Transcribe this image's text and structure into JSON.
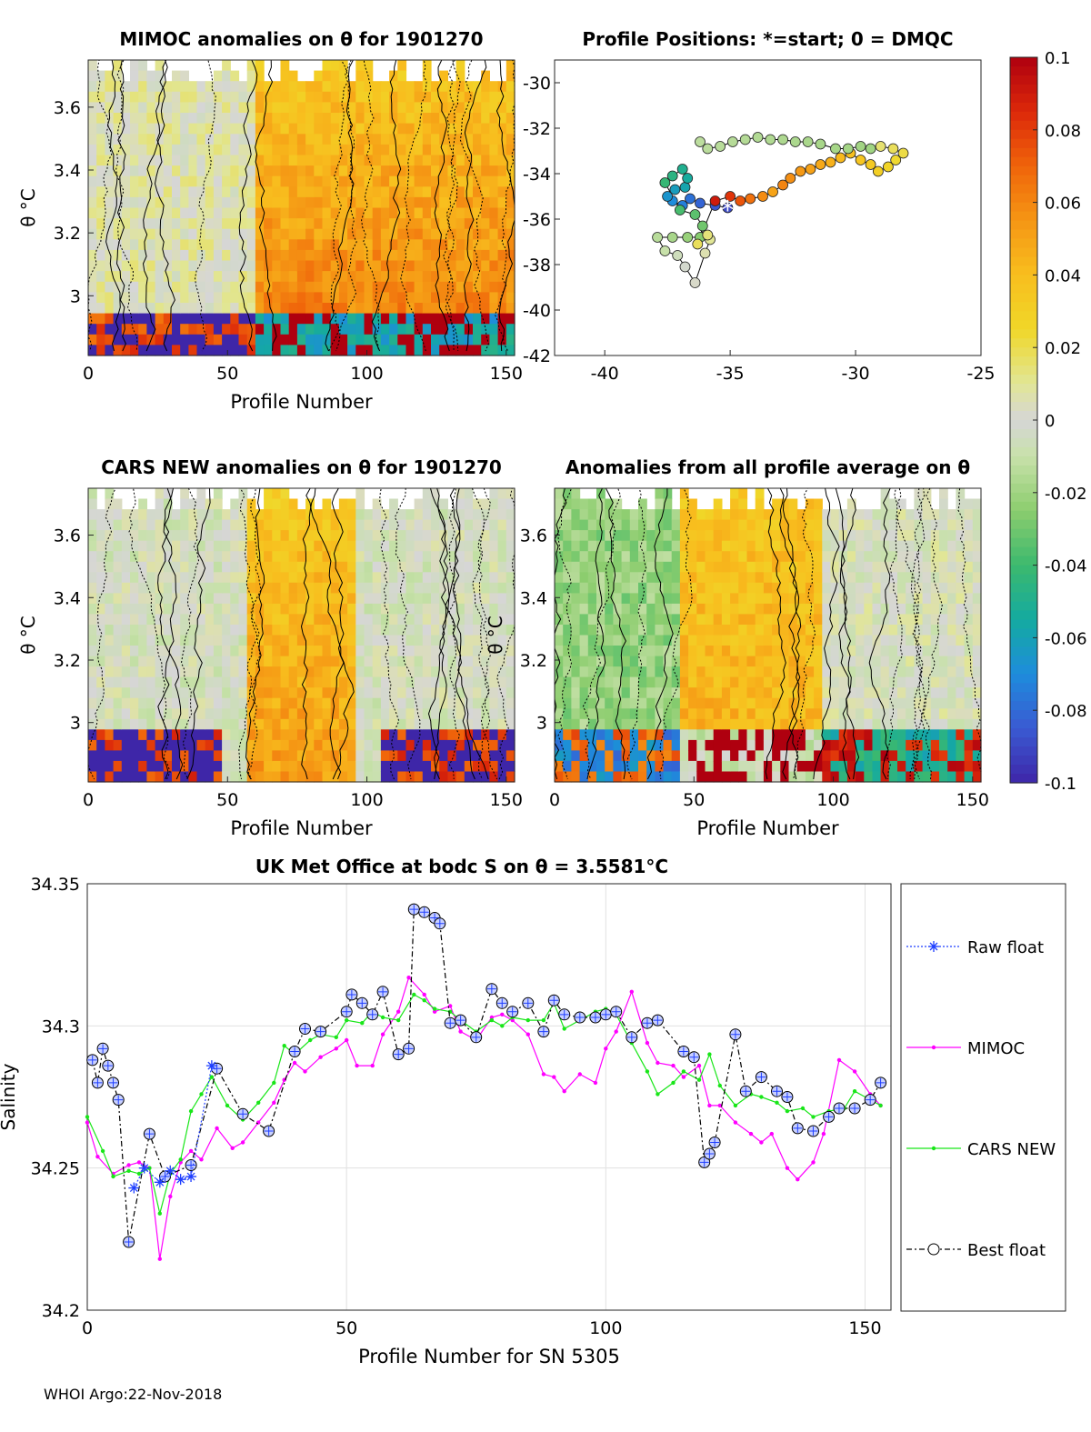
{
  "footer": "WHOI Argo:22-Nov-2018",
  "colors": {
    "raw": "#1f3fff",
    "mimoc": "#ff00ff",
    "cars": "#19e619",
    "best": "#000000",
    "grid": "#e1e1e1"
  },
  "chart_data": [
    {
      "id": "mimoc",
      "type": "heatmap",
      "title": "MIMOC anomalies on θ  for 1901270",
      "xlabel": "Profile Number",
      "ylabel": "θ °C",
      "xlim": [
        0,
        153
      ],
      "ylim": [
        2.81,
        3.75
      ],
      "xticks": [
        "0",
        "50",
        "100",
        "150"
      ],
      "yticks": [
        "3",
        "3.2",
        "3.4",
        "3.6"
      ],
      "clim": [
        -0.1,
        0.1
      ]
    },
    {
      "id": "positions",
      "type": "scatter",
      "title": "Profile Positions: *=start; 0 = DMQC",
      "xlim": [
        -42,
        -25
      ],
      "ylim": [
        -42,
        -29
      ],
      "xticks": [
        "-40",
        "-35",
        "-30",
        "-25"
      ],
      "yticks": [
        "-30",
        "-32",
        "-34",
        "-36",
        "-38",
        "-40",
        "-42"
      ]
    },
    {
      "id": "cars",
      "type": "heatmap",
      "title": "CARS NEW anomalies on θ for 1901270",
      "xlabel": "Profile Number",
      "ylabel": "θ °C",
      "xlim": [
        0,
        153
      ],
      "ylim": [
        2.81,
        3.75
      ],
      "xticks": [
        "0",
        "50",
        "100",
        "150"
      ],
      "yticks": [
        "3",
        "3.2",
        "3.4",
        "3.6"
      ]
    },
    {
      "id": "avg",
      "type": "heatmap",
      "title": "Anomalies from all profile average on θ",
      "xlabel": "Profile Number",
      "ylabel": "θ °C",
      "xlim": [
        0,
        153
      ],
      "ylim": [
        2.81,
        3.75
      ],
      "xticks": [
        "0",
        "50",
        "100",
        "150"
      ],
      "yticks": [
        "3",
        "3.2",
        "3.4",
        "3.6"
      ]
    },
    {
      "id": "colorbar",
      "type": "heatmap",
      "range": [
        -0.1,
        0.1
      ],
      "ticks": [
        "0.1",
        "0.08",
        "0.06",
        "0.04",
        "0.02",
        "0",
        "-0.02",
        "-0.04",
        "-0.06",
        "-0.08",
        "-0.1"
      ]
    },
    {
      "id": "salinity",
      "type": "line",
      "title": "UK Met Office at bodc S on θ = 3.5581°C",
      "xlabel": "Profile Number for SN 5305",
      "ylabel": "Salinity",
      "xlim": [
        0,
        155
      ],
      "ylim": [
        34.2,
        34.35
      ],
      "xticks": [
        "0",
        "50",
        "100",
        "150"
      ],
      "yticks": [
        "34.2",
        "34.25",
        "34.3",
        "34.35"
      ],
      "legend": [
        "Raw float",
        "MIMOC",
        "CARS NEW",
        "Best float"
      ],
      "series": [
        {
          "name": "Best float",
          "x": [
            1,
            2,
            3,
            4,
            5,
            6,
            8,
            12,
            15,
            20,
            25,
            30,
            35,
            40,
            42,
            45,
            50,
            51,
            53,
            55,
            57,
            60,
            62,
            63,
            65,
            67,
            68,
            70,
            72,
            75,
            78,
            80,
            82,
            85,
            88,
            90,
            92,
            95,
            98,
            100,
            102,
            105,
            108,
            110,
            115,
            117,
            119,
            120,
            121,
            125,
            127,
            130,
            133,
            135,
            137,
            140,
            143,
            145,
            148,
            151,
            153
          ],
          "values": [
            34.288,
            34.28,
            34.292,
            34.286,
            34.28,
            34.274,
            34.224,
            34.262,
            34.247,
            34.251,
            34.285,
            34.269,
            34.263,
            34.291,
            34.299,
            34.298,
            34.305,
            34.311,
            34.308,
            34.304,
            34.312,
            34.29,
            34.292,
            34.341,
            34.34,
            34.338,
            34.336,
            34.301,
            34.302,
            34.296,
            34.313,
            34.308,
            34.305,
            34.308,
            34.298,
            34.309,
            34.304,
            34.303,
            34.303,
            34.304,
            34.305,
            34.296,
            34.301,
            34.302,
            34.291,
            34.289,
            34.252,
            34.255,
            34.259,
            34.297,
            34.277,
            34.282,
            34.277,
            34.275,
            34.264,
            34.263,
            34.268,
            34.271,
            34.271,
            34.274,
            34.28
          ]
        },
        {
          "name": "Raw float",
          "x": [
            9,
            11,
            14,
            16,
            18,
            20,
            24
          ],
          "values": [
            34.243,
            34.25,
            34.245,
            34.249,
            34.246,
            34.247,
            34.286
          ]
        },
        {
          "name": "MIMOC",
          "x": [
            0,
            2,
            5,
            8,
            10,
            12,
            14,
            16,
            18,
            20,
            22,
            25,
            28,
            30,
            33,
            36,
            38,
            40,
            42,
            45,
            48,
            50,
            52,
            55,
            57,
            60,
            62,
            65,
            67,
            70,
            72,
            75,
            78,
            80,
            82,
            85,
            88,
            90,
            92,
            95,
            98,
            100,
            102,
            105,
            108,
            110,
            113,
            115,
            118,
            120,
            122,
            125,
            128,
            130,
            132,
            135,
            137,
            140,
            142,
            145,
            148,
            151,
            153
          ],
          "values": [
            34.266,
            34.254,
            34.248,
            34.251,
            34.252,
            34.25,
            34.218,
            34.24,
            34.252,
            34.256,
            34.253,
            34.264,
            34.257,
            34.259,
            34.266,
            34.273,
            34.281,
            34.287,
            34.284,
            34.289,
            34.292,
            34.295,
            34.286,
            34.286,
            34.297,
            34.305,
            34.317,
            34.311,
            34.305,
            34.307,
            34.298,
            34.295,
            34.303,
            34.304,
            34.302,
            34.297,
            34.283,
            34.282,
            34.277,
            34.283,
            34.28,
            34.292,
            34.298,
            34.312,
            34.294,
            34.287,
            34.286,
            34.282,
            34.286,
            34.272,
            34.272,
            34.266,
            34.262,
            34.259,
            34.262,
            34.25,
            34.246,
            34.252,
            34.262,
            34.288,
            34.284,
            34.276,
            34.272
          ]
        },
        {
          "name": "CARS NEW",
          "x": [
            0,
            3,
            5,
            8,
            10,
            12,
            14,
            16,
            18,
            20,
            22,
            24,
            27,
            30,
            33,
            36,
            38,
            40,
            43,
            45,
            48,
            50,
            53,
            55,
            57,
            60,
            63,
            65,
            67,
            70,
            72,
            75,
            78,
            80,
            82,
            85,
            88,
            90,
            92,
            95,
            98,
            100,
            102,
            105,
            108,
            110,
            113,
            115,
            118,
            120,
            122,
            125,
            128,
            130,
            133,
            135,
            138,
            140,
            143,
            146,
            148,
            151,
            153
          ],
          "values": [
            34.268,
            34.256,
            34.247,
            34.249,
            34.248,
            34.25,
            34.234,
            34.248,
            34.253,
            34.27,
            34.276,
            34.282,
            34.272,
            34.267,
            34.273,
            34.28,
            34.293,
            34.29,
            34.295,
            34.297,
            34.296,
            34.302,
            34.301,
            34.305,
            34.303,
            34.302,
            34.311,
            34.309,
            34.306,
            34.305,
            34.302,
            34.298,
            34.302,
            34.3,
            34.303,
            34.302,
            34.302,
            34.308,
            34.299,
            34.302,
            34.305,
            34.306,
            34.304,
            34.294,
            34.284,
            34.276,
            34.28,
            34.284,
            34.281,
            34.29,
            34.279,
            34.272,
            34.276,
            34.275,
            34.273,
            34.27,
            34.271,
            34.268,
            34.27,
            34.271,
            34.277,
            34.274,
            34.272
          ]
        }
      ]
    }
  ]
}
